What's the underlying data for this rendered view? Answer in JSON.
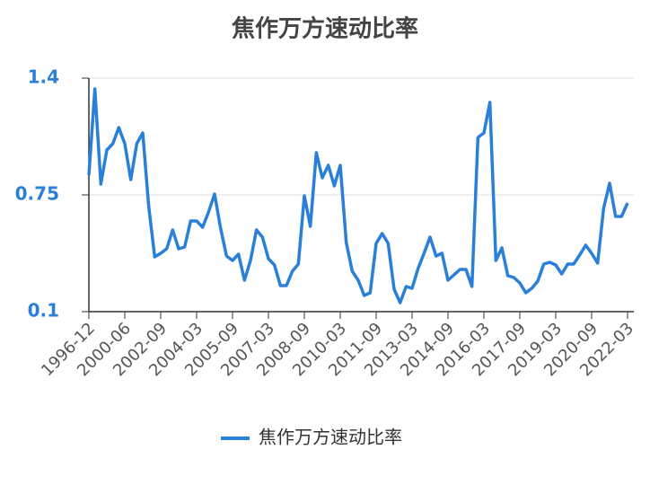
{
  "chart_data": {
    "type": "line",
    "title": "焦作万方速动比率",
    "categories": [
      "1996-12",
      null,
      null,
      null,
      null,
      null,
      "2000-06",
      null,
      null,
      null,
      null,
      null,
      "2002-09",
      null,
      null,
      null,
      null,
      null,
      "2004-03",
      null,
      null,
      null,
      null,
      null,
      "2005-09",
      null,
      null,
      null,
      null,
      null,
      "2007-03",
      null,
      null,
      null,
      null,
      null,
      "2008-09",
      null,
      null,
      null,
      null,
      null,
      "2010-03",
      null,
      null,
      null,
      null,
      null,
      "2011-09",
      null,
      null,
      null,
      null,
      null,
      "2013-03",
      null,
      null,
      null,
      null,
      null,
      "2014-09",
      null,
      null,
      null,
      null,
      null,
      "2016-03",
      null,
      null,
      null,
      null,
      null,
      "2017-09",
      null,
      null,
      null,
      null,
      null,
      "2019-03",
      null,
      null,
      null,
      null,
      null,
      "2020-09",
      null,
      null,
      null,
      null,
      null,
      "2022-03"
    ],
    "series": [
      {
        "name": "焦作万方速动比率",
        "color": "#2a7fd9",
        "values": [
          0.86,
          1.34,
          0.81,
          1.0,
          1.035,
          1.125,
          1.035,
          0.835,
          1.035,
          1.095,
          0.685,
          0.405,
          0.425,
          0.45,
          0.555,
          0.45,
          0.46,
          0.605,
          0.605,
          0.57,
          0.655,
          0.755,
          0.565,
          0.41,
          0.385,
          0.42,
          0.275,
          0.385,
          0.555,
          0.515,
          0.395,
          0.36,
          0.245,
          0.245,
          0.325,
          0.365,
          0.745,
          0.575,
          0.985,
          0.845,
          0.915,
          0.8,
          0.915,
          0.485,
          0.325,
          0.275,
          0.19,
          0.205,
          0.48,
          0.535,
          0.48,
          0.225,
          0.15,
          0.24,
          0.23,
          0.34,
          0.425,
          0.515,
          0.41,
          0.425,
          0.275,
          0.305,
          0.335,
          0.335,
          0.24,
          1.07,
          1.095,
          1.265,
          0.385,
          0.455,
          0.3,
          0.29,
          0.26,
          0.205,
          0.23,
          0.27,
          0.365,
          0.375,
          0.36,
          0.31,
          0.365,
          0.365,
          0.415,
          0.47,
          0.425,
          0.37,
          0.675,
          0.815,
          0.63,
          0.63,
          0.705
        ]
      }
    ],
    "ylim": [
      0.1,
      1.4
    ],
    "yticks": [
      0.1,
      0.75,
      1.4
    ],
    "grid": true
  }
}
